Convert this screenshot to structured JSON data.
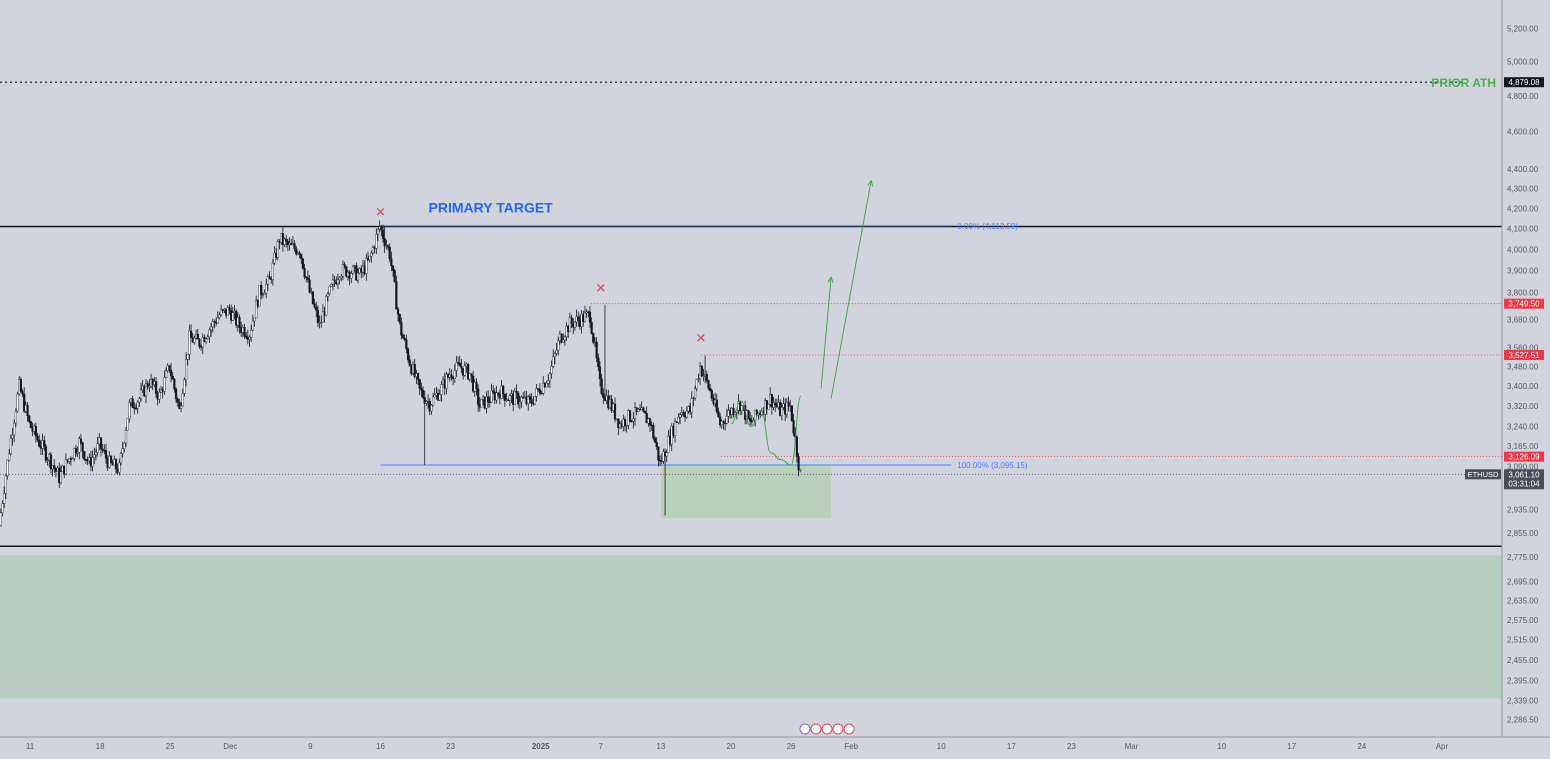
{
  "chart_data": {
    "type": "candlestick",
    "symbol": "ETHUSD",
    "y_scale": "log",
    "ylim": [
      2240,
      5380
    ],
    "y_ticks": [
      "5,200.00",
      "5,000.00",
      "4,800.00",
      "4,600.00",
      "4,400.00",
      "4,300.00",
      "4,200.00",
      "4,100.00",
      "4,000.00",
      "3,900.00",
      "3,800.00",
      "3,680.00",
      "3,560.00",
      "3,480.00",
      "3,400.00",
      "3,320.00",
      "3,240.00",
      "3,165.00",
      "3,090.00",
      "2,935.00",
      "2,855.00",
      "2,775.00",
      "2,695.00",
      "2,635.00",
      "2,575.00",
      "2,515.00",
      "2,455.00",
      "2,395.00",
      "2,339.00",
      "2,286.50"
    ],
    "x_ticks": [
      {
        "label": "11",
        "date": "2024-11-11"
      },
      {
        "label": "18",
        "date": "2024-11-18"
      },
      {
        "label": "25",
        "date": "2024-11-25"
      },
      {
        "label": "Dec",
        "date": "2024-12-01"
      },
      {
        "label": "9",
        "date": "2024-12-09"
      },
      {
        "label": "16",
        "date": "2024-12-16"
      },
      {
        "label": "23",
        "date": "2024-12-23"
      },
      {
        "label": "2025",
        "date": "2025-01-01",
        "bold": true
      },
      {
        "label": "7",
        "date": "2025-01-07"
      },
      {
        "label": "13",
        "date": "2025-01-13"
      },
      {
        "label": "20",
        "date": "2025-01-20"
      },
      {
        "label": "26",
        "date": "2025-01-26"
      },
      {
        "label": "Feb",
        "date": "2025-02-01"
      },
      {
        "label": "10",
        "date": "2025-02-10"
      },
      {
        "label": "17",
        "date": "2025-02-17"
      },
      {
        "label": "23",
        "date": "2025-02-23"
      },
      {
        "label": "Mar",
        "date": "2025-03-01"
      },
      {
        "label": "10",
        "date": "2025-03-10"
      },
      {
        "label": "17",
        "date": "2025-03-17"
      },
      {
        "label": "24",
        "date": "2025-03-24"
      },
      {
        "label": "Apr",
        "date": "2025-04-01"
      }
    ],
    "x_range": [
      "2024-11-08",
      "2025-04-07"
    ],
    "price_path": [
      [
        "2024-11-08",
        2880
      ],
      [
        "2024-11-09",
        3150
      ],
      [
        "2024-11-10",
        3400
      ],
      [
        "2024-11-11",
        3250
      ],
      [
        "2024-11-12",
        3180
      ],
      [
        "2024-11-13",
        3120
      ],
      [
        "2024-11-14",
        3050
      ],
      [
        "2024-11-15",
        3120
      ],
      [
        "2024-11-16",
        3180
      ],
      [
        "2024-11-17",
        3100
      ],
      [
        "2024-11-18",
        3170
      ],
      [
        "2024-11-19",
        3100
      ],
      [
        "2024-11-20",
        3080
      ],
      [
        "2024-11-21",
        3320
      ],
      [
        "2024-11-22",
        3350
      ],
      [
        "2024-11-23",
        3420
      ],
      [
        "2024-11-24",
        3360
      ],
      [
        "2024-11-25",
        3480
      ],
      [
        "2024-11-26",
        3300
      ],
      [
        "2024-11-27",
        3600
      ],
      [
        "2024-11-28",
        3580
      ],
      [
        "2024-11-29",
        3640
      ],
      [
        "2024-11-30",
        3700
      ],
      [
        "2024-12-01",
        3720
      ],
      [
        "2024-12-02",
        3650
      ],
      [
        "2024-12-03",
        3620
      ],
      [
        "2024-12-04",
        3800
      ],
      [
        "2024-12-05",
        3850
      ],
      [
        "2024-12-06",
        4050
      ],
      [
        "2024-12-07",
        4010
      ],
      [
        "2024-12-08",
        4000
      ],
      [
        "2024-12-09",
        3800
      ],
      [
        "2024-12-10",
        3650
      ],
      [
        "2024-12-11",
        3800
      ],
      [
        "2024-12-12",
        3900
      ],
      [
        "2024-12-13",
        3900
      ],
      [
        "2024-12-14",
        3880
      ],
      [
        "2024-12-15",
        3950
      ],
      [
        "2024-12-16",
        4110
      ],
      [
        "2024-12-17",
        3980
      ],
      [
        "2024-12-18",
        3650
      ],
      [
        "2024-12-19",
        3500
      ],
      [
        "2024-12-20",
        3380
      ],
      [
        "2024-12-21",
        3330
      ],
      [
        "2024-12-22",
        3380
      ],
      [
        "2024-12-23",
        3450
      ],
      [
        "2024-12-24",
        3480
      ],
      [
        "2024-12-25",
        3450
      ],
      [
        "2024-12-26",
        3320
      ],
      [
        "2024-12-27",
        3350
      ],
      [
        "2024-12-28",
        3380
      ],
      [
        "2024-12-29",
        3350
      ],
      [
        "2024-12-30",
        3350
      ],
      [
        "2024-12-31",
        3330
      ],
      [
        "2025-01-01",
        3390
      ],
      [
        "2025-01-02",
        3450
      ],
      [
        "2025-01-03",
        3600
      ],
      [
        "2025-01-04",
        3660
      ],
      [
        "2025-01-05",
        3680
      ],
      [
        "2025-01-06",
        3700
      ],
      [
        "2025-01-07",
        3400
      ],
      [
        "2025-01-08",
        3330
      ],
      [
        "2025-01-09",
        3250
      ],
      [
        "2025-01-10",
        3280
      ],
      [
        "2025-01-11",
        3290
      ],
      [
        "2025-01-12",
        3260
      ],
      [
        "2025-01-13",
        3100
      ],
      [
        "2025-01-14",
        3200
      ],
      [
        "2025-01-15",
        3300
      ],
      [
        "2025-01-16",
        3300
      ],
      [
        "2025-01-17",
        3480
      ],
      [
        "2025-01-18",
        3380
      ],
      [
        "2025-01-19",
        3250
      ],
      [
        "2025-01-20",
        3300
      ],
      [
        "2025-01-21",
        3330
      ],
      [
        "2025-01-22",
        3250
      ],
      [
        "2025-01-23",
        3300
      ],
      [
        "2025-01-24",
        3350
      ],
      [
        "2025-01-25",
        3300
      ],
      [
        "2025-01-26",
        3320
      ],
      [
        "2025-01-27",
        3061
      ]
    ],
    "wick_extremes": [
      {
        "date": "2024-12-20",
        "low": 3095
      },
      {
        "date": "2025-01-13",
        "low": 2915
      },
      {
        "date": "2024-12-16",
        "high": 4113
      },
      {
        "date": "2025-01-07",
        "high": 3745
      },
      {
        "date": "2025-01-17",
        "high": 3525
      }
    ],
    "current_price": {
      "label": "ETHUSD",
      "value": "3,061.10",
      "countdown": "03:31:04",
      "price": 3061.1
    },
    "price_labels": [
      {
        "value": "4,879.08",
        "price": 4879.08,
        "color": "#131722"
      },
      {
        "value": "3,749.50",
        "price": 3749.5,
        "color": "#f23645"
      },
      {
        "value": "3,527.51",
        "price": 3527.51,
        "color": "#f23645"
      },
      {
        "value": "3,126.09",
        "price": 3126.09,
        "color": "#f23645"
      }
    ],
    "horizontal_lines": [
      {
        "price": 4879.08,
        "style": "dotted",
        "color": "#131722"
      },
      {
        "price": 4110,
        "style": "solid",
        "color": "#131722"
      },
      {
        "price": 2810,
        "style": "solid",
        "color": "#131722"
      },
      {
        "price": 3749.5,
        "from": "2025-01-06",
        "style": "dotted",
        "color": "#f23645"
      },
      {
        "price": 3527.51,
        "from": "2025-01-17",
        "style": "dotted",
        "color": "#f23645"
      },
      {
        "price": 3126.09,
        "from": "2025-01-19",
        "style": "dotted",
        "color": "#f23645"
      },
      {
        "price": 3061.1,
        "style": "dotted",
        "color": "#555"
      }
    ],
    "fib": {
      "from": "2024-12-16",
      "to": "2025-02-11",
      "levels": [
        {
          "text": "0.00% (4,113.59)",
          "price": 4113.59
        },
        {
          "text": "100.00% (3,095.15)",
          "price": 3095.15
        }
      ],
      "color": "#4f7cff"
    },
    "zones": [
      {
        "name": "support-box",
        "from": "2025-01-13",
        "to": "2025-01-30",
        "price_top": 3095,
        "price_bottom": 2905,
        "color": "#a8cfa5"
      },
      {
        "name": "demand-zone",
        "from": "2024-11-08",
        "to": "2025-04-07",
        "price_top": 2780,
        "price_bottom": 2345,
        "color": "#b6cdc0"
      }
    ],
    "annotations": [
      {
        "text": "PRIOR ATH",
        "price": 4879.08,
        "color": "#4caf50"
      },
      {
        "text": "PRIMARY TARGET",
        "date": "2024-12-27",
        "price": 4180,
        "color": "#2962ff"
      }
    ],
    "markers": [
      {
        "symbol": "✕",
        "date": "2024-12-16",
        "price": 4160,
        "color": "#e5434d"
      },
      {
        "symbol": "✕",
        "date": "2025-01-07",
        "price": 3800,
        "color": "#e5434d"
      },
      {
        "symbol": "✕",
        "date": "2025-01-17",
        "price": 3580,
        "color": "#e5434d"
      }
    ],
    "projection_path": [
      [
        "2025-01-20",
        3250
      ],
      [
        "2025-01-21",
        3340
      ],
      [
        "2025-01-22",
        3240
      ],
      [
        "2025-01-23",
        3300
      ],
      [
        "2025-01-24",
        3140
      ],
      [
        "2025-01-25",
        3115
      ],
      [
        "2025-01-26",
        3095
      ],
      [
        "2025-01-27",
        3360
      ]
    ],
    "arrows": [
      {
        "from": [
          "2025-01-29",
          3390
        ],
        "to": [
          "2025-01-30",
          3870
        ],
        "color": "#43a047"
      },
      {
        "from": [
          "2025-01-30",
          3350
        ],
        "to": [
          "2025-02-03",
          4340
        ],
        "color": "#43a047"
      }
    ]
  }
}
